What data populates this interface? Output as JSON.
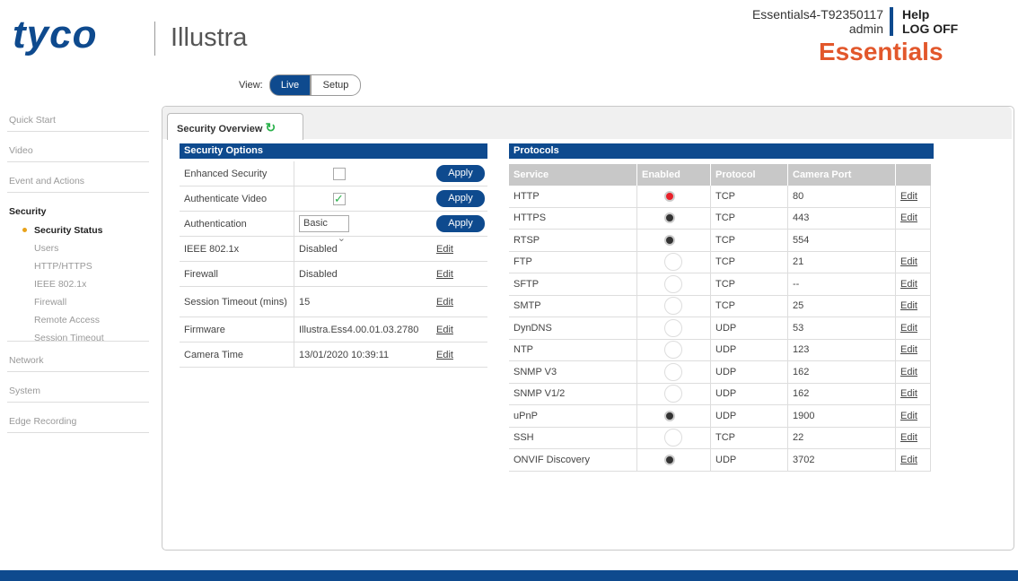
{
  "header": {
    "brand": "tyco",
    "product": "Illustra",
    "device": "Essentials4-T92350117",
    "user": "admin",
    "help": "Help",
    "logoff": "LOG OFF",
    "edition": "Essentials"
  },
  "view": {
    "label": "View:",
    "options": [
      "Live",
      "Setup"
    ],
    "active": 0
  },
  "nav": {
    "items": [
      {
        "label": "Quick Start"
      },
      {
        "label": "Video"
      },
      {
        "label": "Event and Actions"
      },
      {
        "label": "Security",
        "expanded": true,
        "children": [
          {
            "label": "Security Status",
            "active": true
          },
          {
            "label": "Users"
          },
          {
            "label": "HTTP/HTTPS"
          },
          {
            "label": "IEEE 802.1x"
          },
          {
            "label": "Firewall"
          },
          {
            "label": "Remote Access"
          },
          {
            "label": "Session Timeout"
          }
        ]
      },
      {
        "label": "Network"
      },
      {
        "label": "System"
      },
      {
        "label": "Edge Recording"
      }
    ]
  },
  "tab": {
    "title": "Security Overview"
  },
  "security_options": {
    "title": "Security Options",
    "rows": [
      {
        "label": "Enhanced Security",
        "control": "checkbox",
        "checked": false,
        "action": "Apply"
      },
      {
        "label": "Authenticate Video",
        "control": "checkbox",
        "checked": true,
        "action": "Apply"
      },
      {
        "label": "Authentication",
        "control": "select",
        "value": "Basic",
        "action": "Apply"
      },
      {
        "label": "IEEE 802.1x",
        "value": "Disabled",
        "action": "Edit"
      },
      {
        "label": "Firewall",
        "value": "Disabled",
        "action": "Edit"
      },
      {
        "label": "Session Timeout (mins)",
        "value": "15",
        "action": "Edit"
      },
      {
        "label": "Firmware",
        "value": "Illustra.Ess4.00.01.03.2780",
        "action": "Edit"
      },
      {
        "label": "Camera Time",
        "value": "13/01/2020 10:39:11",
        "action": "Edit"
      }
    ]
  },
  "protocols": {
    "title": "Protocols",
    "columns": [
      "Service",
      "Enabled",
      "Protocol",
      "Camera Port"
    ],
    "rows": [
      {
        "service": "HTTP",
        "status": "current",
        "protocol": "TCP",
        "port": "80",
        "action": "Edit"
      },
      {
        "service": "HTTPS",
        "status": "on",
        "protocol": "TCP",
        "port": "443",
        "action": "Edit"
      },
      {
        "service": "RTSP",
        "status": "on",
        "protocol": "TCP",
        "port": "554"
      },
      {
        "service": "FTP",
        "status": "off",
        "protocol": "TCP",
        "port": "21",
        "action": "Edit"
      },
      {
        "service": "SFTP",
        "status": "off",
        "protocol": "TCP",
        "port": "--",
        "action": "Edit"
      },
      {
        "service": "SMTP",
        "status": "off",
        "protocol": "TCP",
        "port": "25",
        "action": "Edit"
      },
      {
        "service": "DynDNS",
        "status": "off",
        "protocol": "UDP",
        "port": "53",
        "action": "Edit"
      },
      {
        "service": "NTP",
        "status": "off",
        "protocol": "UDP",
        "port": "123",
        "action": "Edit"
      },
      {
        "service": "SNMP V3",
        "status": "off",
        "protocol": "UDP",
        "port": "162",
        "action": "Edit"
      },
      {
        "service": "SNMP V1/2",
        "status": "off",
        "protocol": "UDP",
        "port": "162",
        "action": "Edit"
      },
      {
        "service": "uPnP",
        "status": "on",
        "protocol": "UDP",
        "port": "1900",
        "action": "Edit"
      },
      {
        "service": "SSH",
        "status": "off",
        "protocol": "TCP",
        "port": "22",
        "action": "Edit"
      },
      {
        "service": "ONVIF Discovery",
        "status": "on",
        "protocol": "UDP",
        "port": "3702",
        "action": "Edit"
      }
    ]
  }
}
